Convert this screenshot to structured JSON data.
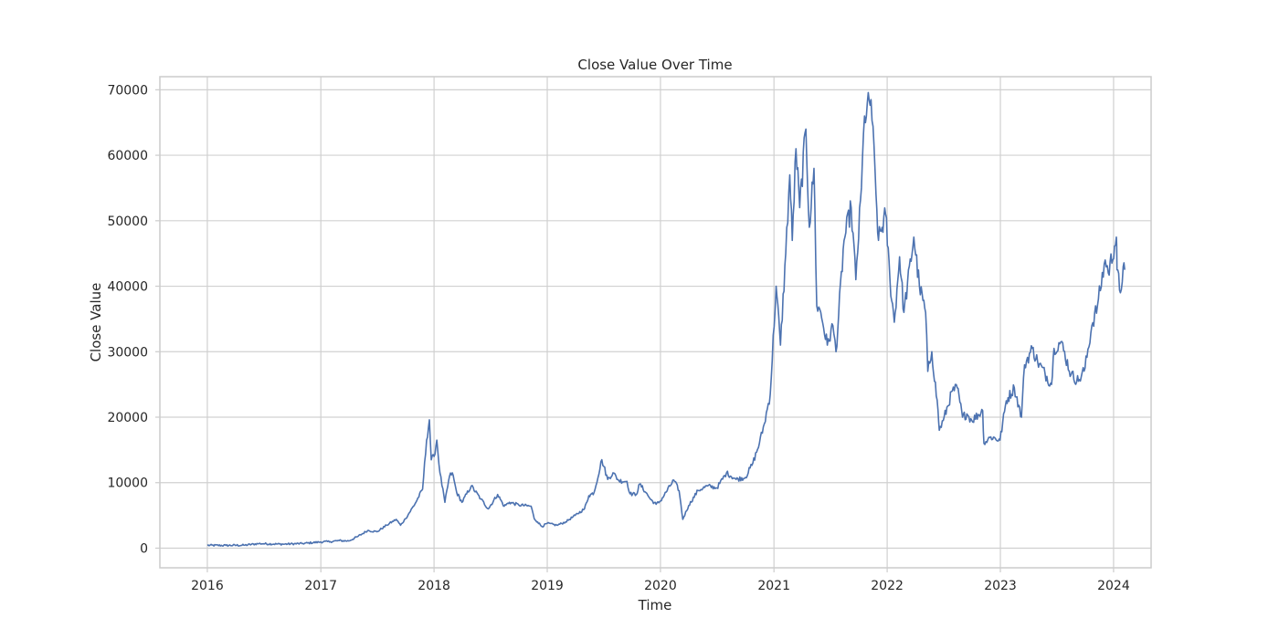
{
  "chart_data": {
    "type": "line",
    "title": "Close Value Over Time",
    "xlabel": "Time",
    "ylabel": "Close Value",
    "xlim": [
      "2015-08-01",
      "2024-05-01"
    ],
    "ylim": [
      -3000,
      72000
    ],
    "grid": true,
    "x_ticks": [
      "2016",
      "2017",
      "2018",
      "2019",
      "2020",
      "2021",
      "2022",
      "2023",
      "2024"
    ],
    "y_ticks": [
      0,
      10000,
      20000,
      30000,
      40000,
      50000,
      60000,
      70000
    ],
    "series": [
      {
        "color": "#4c72b0",
        "points": [
          [
            "2016-01-01",
            430
          ],
          [
            "2016-03-01",
            420
          ],
          [
            "2016-05-01",
            450
          ],
          [
            "2016-06-15",
            700
          ],
          [
            "2016-07-01",
            670
          ],
          [
            "2016-09-01",
            610
          ],
          [
            "2016-11-01",
            700
          ],
          [
            "2017-01-01",
            950
          ],
          [
            "2017-02-01",
            1000
          ],
          [
            "2017-03-01",
            1150
          ],
          [
            "2017-04-01",
            1100
          ],
          [
            "2017-05-01",
            1800
          ],
          [
            "2017-06-01",
            2700
          ],
          [
            "2017-07-01",
            2500
          ],
          [
            "2017-08-01",
            3500
          ],
          [
            "2017-09-01",
            4400
          ],
          [
            "2017-09-15",
            3500
          ],
          [
            "2017-10-01",
            4500
          ],
          [
            "2017-11-01",
            6800
          ],
          [
            "2017-11-25",
            9000
          ],
          [
            "2017-12-08",
            16500
          ],
          [
            "2017-12-17",
            19600
          ],
          [
            "2017-12-23",
            13500
          ],
          [
            "2018-01-01",
            14000
          ],
          [
            "2018-01-10",
            16500
          ],
          [
            "2018-01-20",
            11500
          ],
          [
            "2018-02-05",
            7000
          ],
          [
            "2018-02-20",
            11000
          ],
          [
            "2018-03-01",
            11500
          ],
          [
            "2018-03-15",
            8500
          ],
          [
            "2018-04-01",
            7000
          ],
          [
            "2018-05-01",
            9500
          ],
          [
            "2018-06-01",
            7500
          ],
          [
            "2018-06-25",
            6000
          ],
          [
            "2018-07-25",
            8200
          ],
          [
            "2018-08-15",
            6400
          ],
          [
            "2018-09-01",
            7000
          ],
          [
            "2018-10-01",
            6600
          ],
          [
            "2018-11-10",
            6400
          ],
          [
            "2018-11-20",
            4500
          ],
          [
            "2018-12-01",
            4000
          ],
          [
            "2018-12-15",
            3300
          ],
          [
            "2019-01-01",
            3800
          ],
          [
            "2019-02-01",
            3500
          ],
          [
            "2019-03-01",
            4000
          ],
          [
            "2019-04-01",
            5000
          ],
          [
            "2019-05-01",
            6000
          ],
          [
            "2019-05-15",
            8000
          ],
          [
            "2019-06-01",
            8500
          ],
          [
            "2019-06-26",
            13500
          ],
          [
            "2019-07-15",
            10500
          ],
          [
            "2019-08-01",
            11500
          ],
          [
            "2019-08-20",
            10300
          ],
          [
            "2019-09-15",
            10200
          ],
          [
            "2019-09-25",
            8300
          ],
          [
            "2019-10-15",
            8200
          ],
          [
            "2019-10-26",
            9800
          ],
          [
            "2019-11-15",
            8500
          ],
          [
            "2019-12-01",
            7400
          ],
          [
            "2019-12-18",
            6700
          ],
          [
            "2020-01-01",
            7200
          ],
          [
            "2020-02-13",
            10400
          ],
          [
            "2020-03-01",
            8800
          ],
          [
            "2020-03-13",
            4400
          ],
          [
            "2020-04-01",
            6500
          ],
          [
            "2020-05-01",
            8800
          ],
          [
            "2020-06-01",
            9500
          ],
          [
            "2020-07-01",
            9200
          ],
          [
            "2020-08-01",
            11500
          ],
          [
            "2020-09-01",
            10500
          ],
          [
            "2020-10-01",
            10800
          ],
          [
            "2020-10-25",
            13000
          ],
          [
            "2020-11-15",
            16000
          ],
          [
            "2020-12-01",
            19000
          ],
          [
            "2020-12-20",
            23500
          ],
          [
            "2021-01-08",
            40000
          ],
          [
            "2021-01-22",
            31000
          ],
          [
            "2021-02-08",
            45000
          ],
          [
            "2021-02-21",
            57000
          ],
          [
            "2021-03-01",
            47000
          ],
          [
            "2021-03-13",
            61000
          ],
          [
            "2021-03-25",
            52000
          ],
          [
            "2021-04-14",
            64000
          ],
          [
            "2021-04-25",
            49000
          ],
          [
            "2021-05-10",
            58000
          ],
          [
            "2021-05-19",
            37000
          ],
          [
            "2021-06-01",
            36000
          ],
          [
            "2021-06-22",
            31000
          ],
          [
            "2021-07-10",
            34000
          ],
          [
            "2021-07-20",
            30000
          ],
          [
            "2021-08-15",
            47000
          ],
          [
            "2021-09-07",
            52000
          ],
          [
            "2021-09-22",
            41000
          ],
          [
            "2021-10-10",
            55000
          ],
          [
            "2021-10-20",
            66000
          ],
          [
            "2021-11-10",
            68500
          ],
          [
            "2021-11-26",
            54000
          ],
          [
            "2021-12-04",
            47000
          ],
          [
            "2021-12-27",
            51000
          ],
          [
            "2022-01-10",
            41000
          ],
          [
            "2022-01-24",
            34500
          ],
          [
            "2022-02-10",
            44500
          ],
          [
            "2022-02-24",
            36000
          ],
          [
            "2022-03-28",
            47500
          ],
          [
            "2022-04-15",
            40000
          ],
          [
            "2022-05-05",
            36000
          ],
          [
            "2022-05-12",
            27000
          ],
          [
            "2022-05-25",
            30000
          ],
          [
            "2022-06-14",
            21000
          ],
          [
            "2022-06-18",
            18000
          ],
          [
            "2022-07-01",
            19500
          ],
          [
            "2022-07-30",
            24000
          ],
          [
            "2022-08-15",
            24500
          ],
          [
            "2022-09-01",
            20000
          ],
          [
            "2022-09-15",
            20500
          ],
          [
            "2022-10-01",
            19500
          ],
          [
            "2022-11-05",
            21000
          ],
          [
            "2022-11-09",
            16000
          ],
          [
            "2022-12-01",
            17000
          ],
          [
            "2022-12-31",
            16500
          ],
          [
            "2023-01-20",
            22500
          ],
          [
            "2023-02-15",
            24500
          ],
          [
            "2023-03-10",
            20000
          ],
          [
            "2023-03-20",
            28000
          ],
          [
            "2023-04-14",
            30500
          ],
          [
            "2023-05-01",
            28500
          ],
          [
            "2023-06-15",
            25000
          ],
          [
            "2023-06-23",
            30500
          ],
          [
            "2023-07-15",
            31500
          ],
          [
            "2023-08-17",
            26500
          ],
          [
            "2023-09-10",
            25500
          ],
          [
            "2023-10-01",
            27500
          ],
          [
            "2023-10-23",
            34000
          ],
          [
            "2023-11-10",
            37000
          ],
          [
            "2023-12-05",
            44000
          ],
          [
            "2023-12-15",
            42000
          ],
          [
            "2024-01-10",
            47500
          ],
          [
            "2024-01-12",
            42500
          ],
          [
            "2024-01-23",
            39000
          ],
          [
            "2024-02-01",
            43000
          ],
          [
            "2024-02-06",
            42500
          ]
        ]
      }
    ]
  }
}
